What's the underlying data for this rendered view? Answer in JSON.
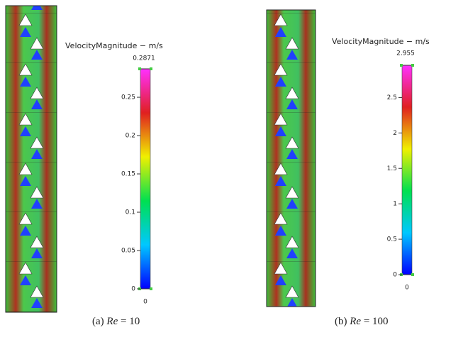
{
  "panels": [
    {
      "colorbar": {
        "title": "VelocityMagnitude − m/s",
        "max_label": "0.2871",
        "ticks": [
          "0.25",
          "0.2",
          "0.15",
          "0.1",
          "0.05",
          "0"
        ],
        "min_label": "0"
      },
      "caption": {
        "label": "(a)",
        "variable": "Re",
        "equation": "= 10"
      }
    },
    {
      "colorbar": {
        "title": "VelocityMagnitude − m/s",
        "max_label": "2.955",
        "ticks": [
          "2.5",
          "2",
          "1.5",
          "1",
          "0.5",
          "0"
        ],
        "min_label": "0"
      },
      "caption": {
        "label": "(b)",
        "variable": "Re",
        "equation": "= 100"
      }
    }
  ]
}
